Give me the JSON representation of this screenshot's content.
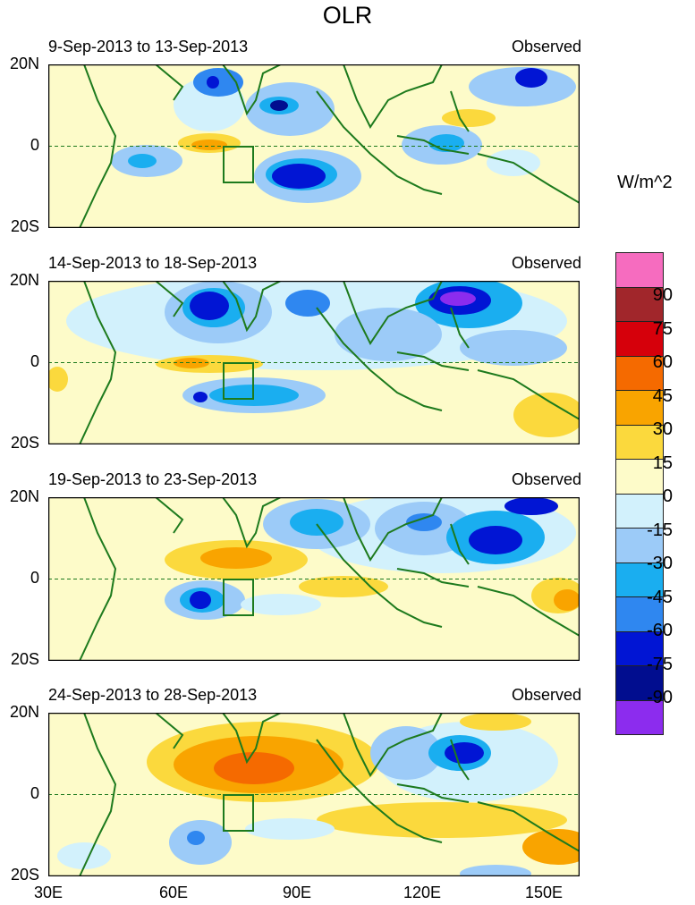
{
  "title": "OLR",
  "units": "W/m^2",
  "tag": "Observed",
  "lat_labels": [
    "20N",
    "0",
    "20S"
  ],
  "lon_labels": [
    "30E",
    "60E",
    "90E",
    "120E",
    "150E"
  ],
  "panels": [
    {
      "period": "9-Sep-2013 to 13-Sep-2013"
    },
    {
      "period": "14-Sep-2013 to 18-Sep-2013"
    },
    {
      "period": "19-Sep-2013 to 23-Sep-2013"
    },
    {
      "period": "24-Sep-2013 to 28-Sep-2013"
    }
  ],
  "colorbar": {
    "labels": [
      "90",
      "75",
      "60",
      "45",
      "30",
      "15",
      "0",
      "-15",
      "-30",
      "-45",
      "-60",
      "-75",
      "-90"
    ],
    "colors": [
      "#f66cbf",
      "#a1262b",
      "#d6000b",
      "#f56a00",
      "#f9a400",
      "#fbd93d",
      "#fdfbc9",
      "#d2f1fc",
      "#9ccbf8",
      "#1aaef0",
      "#2f87f0",
      "#0115d4",
      "#010d8f",
      "#8c2cee"
    ]
  },
  "colors": {
    "coast": "#1d7a1d",
    "equator": "#1d7a1d"
  }
}
